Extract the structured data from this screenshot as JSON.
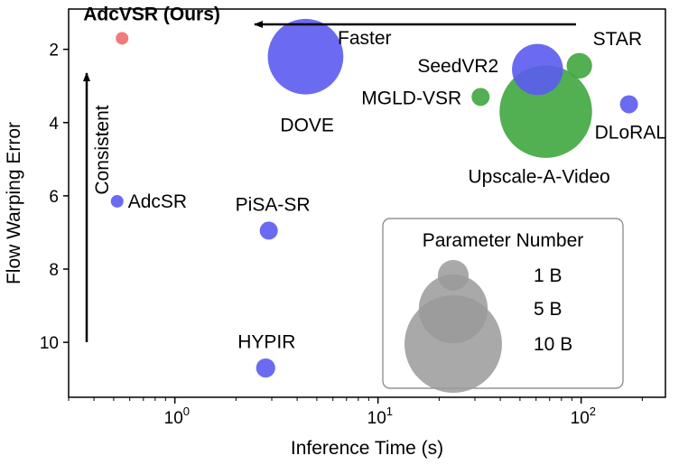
{
  "chart_data": {
    "type": "scatter",
    "title": "",
    "xlabel": "Inference Time (s)",
    "ylabel": "Flow Warping Error",
    "xscale": "log",
    "xlim": [
      0.3,
      260
    ],
    "ylim": [
      0.9,
      11.5
    ],
    "y_inverted": true,
    "x_ticks": [
      {
        "value": 1,
        "base": "10",
        "exp": "0"
      },
      {
        "value": 10,
        "base": "10",
        "exp": "1"
      },
      {
        "value": 100,
        "base": "10",
        "exp": "2"
      }
    ],
    "y_ticks": [
      2,
      4,
      6,
      8,
      10
    ],
    "colors": {
      "ours": "#f26b6b",
      "blue": "#5b5bf0",
      "green": "#3fa63f",
      "legend": "#9a9a9a"
    },
    "points": [
      {
        "name": "AdcVSR (Ours)",
        "x": 0.55,
        "y": 1.7,
        "params_b": 0.05,
        "color": "#f26b6b",
        "bold": true
      },
      {
        "name": "DOVE",
        "x": 4.4,
        "y": 2.2,
        "params_b": 7.0,
        "color": "#5b5bf0"
      },
      {
        "name": "SeedVR2",
        "x": 61,
        "y": 2.55,
        "params_b": 3.2,
        "color": "#5b5bf0"
      },
      {
        "name": "STAR",
        "x": 98,
        "y": 2.45,
        "params_b": 0.8,
        "color": "#3fa63f"
      },
      {
        "name": "MGLD-VSR",
        "x": 32,
        "y": 3.3,
        "params_b": 0.4,
        "color": "#3fa63f"
      },
      {
        "name": "Upscale-A-Video",
        "x": 67,
        "y": 3.7,
        "params_b": 10.5,
        "color": "#3fa63f"
      },
      {
        "name": "DLoRAL",
        "x": 172,
        "y": 3.5,
        "params_b": 0.4,
        "color": "#5b5bf0"
      },
      {
        "name": "AdcSR",
        "x": 0.52,
        "y": 6.15,
        "params_b": 0.1,
        "color": "#5b5bf0"
      },
      {
        "name": "PiSA-SR",
        "x": 2.9,
        "y": 6.95,
        "params_b": 0.4,
        "color": "#5b5bf0"
      },
      {
        "name": "HYPIR",
        "x": 2.8,
        "y": 10.7,
        "params_b": 0.45,
        "color": "#5b5bf0"
      }
    ],
    "annotations": [
      {
        "text": "Faster",
        "direction": "left"
      },
      {
        "text": "Consistent",
        "direction": "up"
      }
    ],
    "legend": {
      "title": "Parameter Number",
      "entries": [
        {
          "label": "1 B",
          "params_b": 1
        },
        {
          "label": "5 B",
          "params_b": 5
        },
        {
          "label": "10 B",
          "params_b": 10
        }
      ]
    }
  }
}
